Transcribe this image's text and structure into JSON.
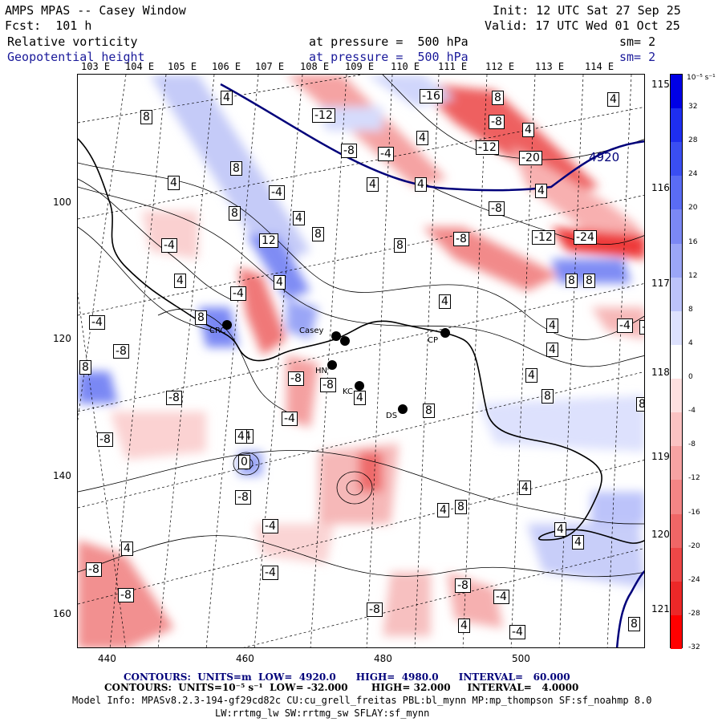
{
  "header": {
    "line1_left": "AMPS MPAS -- Casey Window",
    "line1_right": "Init: 12 UTC Sat 27 Sep 25",
    "line2_left": "Fcst:  101 h",
    "line2_right": "Valid: 17 UTC Wed 01 Oct 25",
    "var1": "Relative vorticity",
    "var1_pressure": "at pressure =  500 hPa",
    "var1_sm": "sm= 2",
    "var2": "Geopotential height",
    "var2_pressure": "at pressure =  500 hPa",
    "var2_sm": "sm= 2"
  },
  "top_longitudes": [
    "103 E",
    "104 E",
    "105 E",
    "106 E",
    "107 E",
    "108 E",
    "109 E",
    "110 E",
    "111 E",
    "112 E",
    "113 E",
    "114 E"
  ],
  "right_longitudes": [
    "115 E",
    "116 E",
    "117 E",
    "118 E",
    "119 E",
    "120 E",
    "121 E"
  ],
  "x_axis": [
    "440",
    "460",
    "480",
    "500"
  ],
  "y_axis": [
    "100",
    "120",
    "140",
    "160"
  ],
  "stations": [
    "CRC",
    "Casey",
    "HN",
    "KC",
    "DS",
    "CP"
  ],
  "contour_labels": [
    "4",
    "8",
    "-12",
    "-16",
    "8",
    "-8",
    "4",
    "-12",
    "-20",
    "4",
    "-8",
    "-4",
    "4",
    "4",
    "4",
    "8",
    "-4",
    "4",
    "8",
    "-4",
    "4",
    "-8",
    "4",
    "-24",
    "-12",
    "-8",
    "12",
    "-4",
    "8",
    "4",
    "8",
    "-4",
    "8",
    "4",
    "4",
    "-4",
    "8",
    "4",
    "8",
    "-8",
    "8",
    "4",
    "-8",
    "-8",
    "-8",
    "4",
    "-4",
    "-8",
    "4",
    "8",
    "-4",
    "8",
    "4",
    "0",
    "-8",
    "-4",
    "4",
    "4",
    "8",
    "-8",
    "4",
    "-8",
    "-4",
    "-4",
    "-8",
    "4",
    "8",
    "4",
    "4",
    "-8",
    "8",
    "-4",
    "4"
  ],
  "height_contour_label": "4920",
  "colorbar": {
    "units": "10⁻⁵ s⁻¹",
    "ticks": [
      "32",
      "28",
      "24",
      "20",
      "16",
      "12",
      "8",
      "4",
      "0",
      "-4",
      "-8",
      "-12",
      "-16",
      "-20",
      "-24",
      "-28",
      "-32"
    ],
    "colors": [
      "#0000e6",
      "#1e2ef0",
      "#3a4ef2",
      "#5a6cf4",
      "#7b88f5",
      "#9ba6f7",
      "#bcc3fa",
      "#dde1fd",
      "#ffffff",
      "#fde0e0",
      "#fbc2c2",
      "#f7a3a3",
      "#f48585",
      "#f06666",
      "#ee4747",
      "#ec2828",
      "#ff0000"
    ]
  },
  "footer": {
    "line1": "CONTOURS:  UNITS=m  LOW=  4920.0      HIGH=  4980.0      INTERVAL=   60.000",
    "line2": "CONTOURS:  UNITS=10⁻⁵ s⁻¹  LOW= -32.000       HIGH= 32.000     INTERVAL=   4.0000",
    "line3": "Model Info: MPASv8.2.3-194-gf29cd82c CU:cu_grell_freitas PBL:bl_mynn MP:mp_thompson SF:sf_noahmp 8.0",
    "line4": "LW:rrtmg_lw SW:rrtmg_sw SFLAY:sf_mynn"
  }
}
